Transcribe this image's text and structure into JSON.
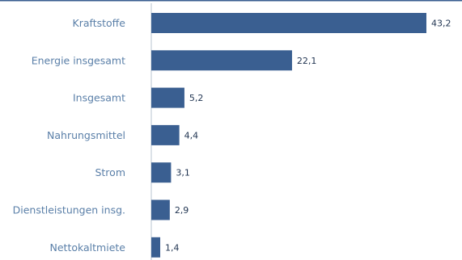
{
  "chart_data": {
    "type": "bar",
    "orientation": "horizontal",
    "categories": [
      "Kraftstoffe",
      "Energie insgesamt",
      "Insgesamt",
      "Nahrungsmittel",
      "Strom",
      "Dienstleistungen insg.",
      "Nettokaltmiete"
    ],
    "values": [
      43.2,
      22.1,
      5.2,
      4.4,
      3.1,
      2.9,
      1.4
    ],
    "value_labels": [
      "43,2",
      "22,1",
      "5,2",
      "4,4",
      "3,1",
      "2,9",
      "1,4"
    ],
    "title": "",
    "xlabel": "",
    "ylabel": "",
    "xlim": [
      0,
      43.2
    ],
    "grid": false,
    "legend": "none",
    "bar_color": "#3a5f91",
    "label_color": "#5a7fa8",
    "value_color": "#1f3350",
    "axis_color": "#3a5f91"
  }
}
